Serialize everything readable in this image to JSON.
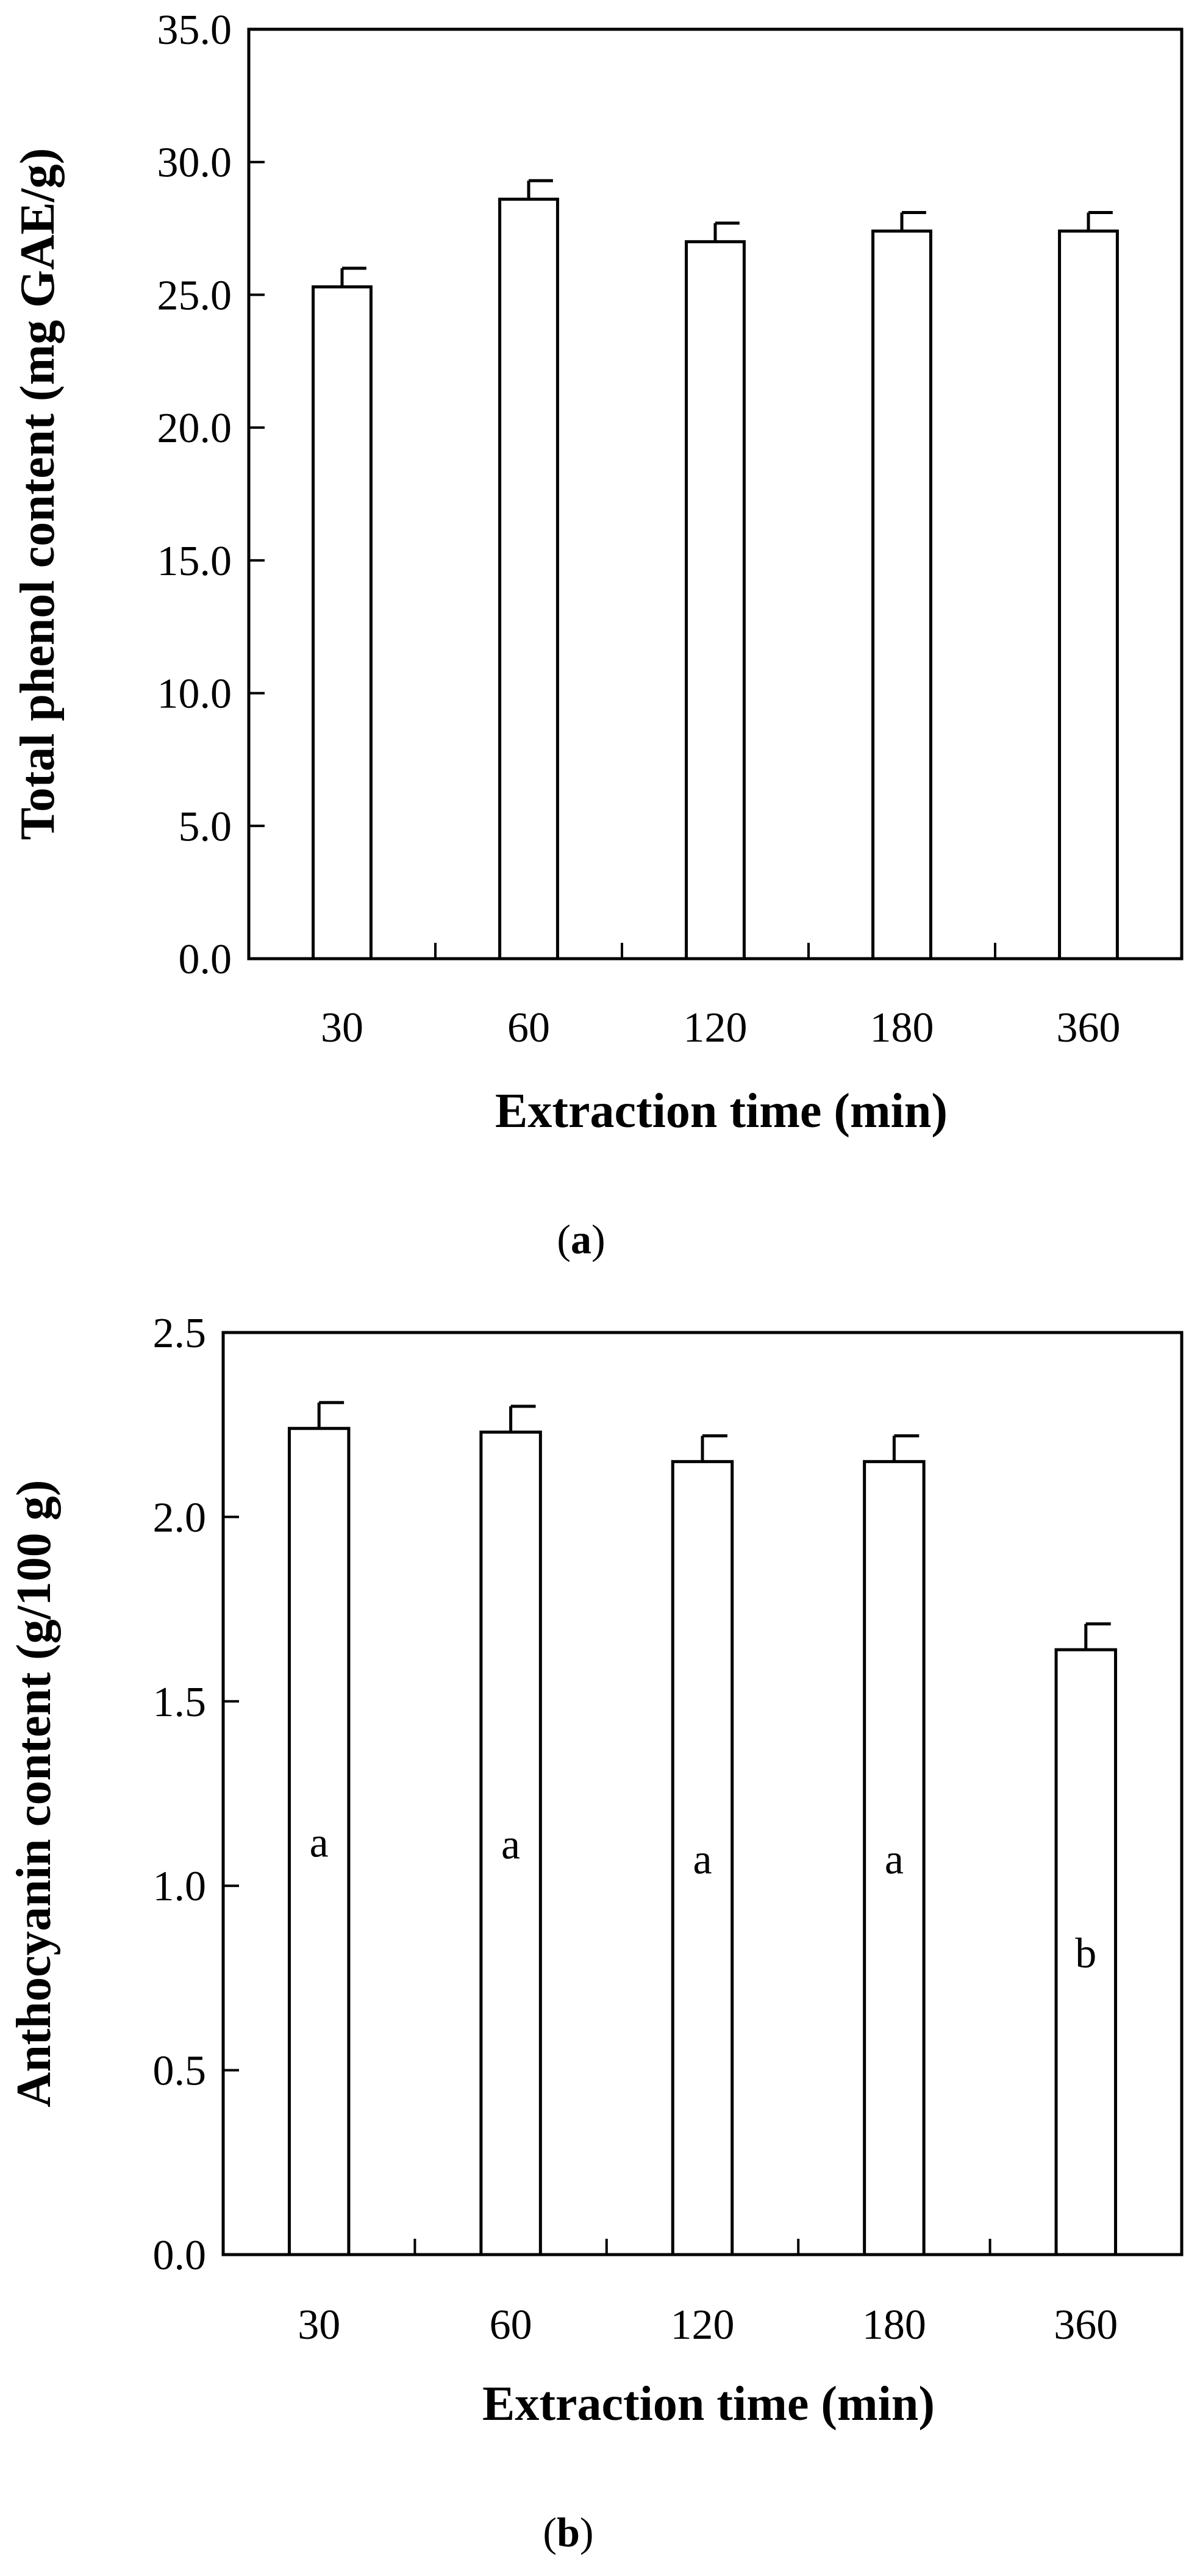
{
  "chart_data": [
    {
      "type": "bar",
      "panel_label": {
        "open": "(",
        "letter": "a",
        "close": ")"
      },
      "categories": [
        "30",
        "60",
        "120",
        "180",
        "360"
      ],
      "values": [
        25.3,
        28.6,
        27.0,
        27.4,
        27.4
      ],
      "errors": [
        0.7,
        0.7,
        0.7,
        0.7,
        0.7
      ],
      "group_letters": [
        "",
        "",
        "",
        "",
        ""
      ],
      "xlabel": "Extraction time (min)",
      "ylabel": "Total phenol content (mg GAE/g)",
      "ylim": [
        0,
        35
      ],
      "yticks": [
        0,
        5,
        10,
        15,
        20,
        25,
        30,
        35
      ],
      "ytick_labels": [
        "0.0",
        "5.0",
        "10.0",
        "15.0",
        "20.0",
        "25.0",
        "30.0",
        "35.0"
      ],
      "grid": false,
      "legend": "none",
      "colors": {
        "bar_fill": "#ffffff",
        "bar_stroke": "#000000",
        "axis": "#000000"
      }
    },
    {
      "type": "bar",
      "panel_label": {
        "open": "(",
        "letter": "b",
        "close": ")"
      },
      "categories": [
        "30",
        "60",
        "120",
        "180",
        "360"
      ],
      "values": [
        2.24,
        2.23,
        2.15,
        2.15,
        1.64
      ],
      "errors": [
        0.07,
        0.07,
        0.07,
        0.07,
        0.07
      ],
      "group_letters": [
        "a",
        "a",
        "a",
        "a",
        "b"
      ],
      "xlabel": "Extraction time (min)",
      "ylabel": "Anthocyanin content (g/100 g)",
      "ylim": [
        0,
        2.5
      ],
      "yticks": [
        0,
        0.5,
        1.0,
        1.5,
        2.0,
        2.5
      ],
      "ytick_labels": [
        "0.0",
        "0.5",
        "1.0",
        "1.5",
        "2.0",
        "2.5"
      ],
      "grid": false,
      "legend": "none",
      "colors": {
        "bar_fill": "#ffffff",
        "bar_stroke": "#000000",
        "axis": "#000000"
      }
    }
  ]
}
